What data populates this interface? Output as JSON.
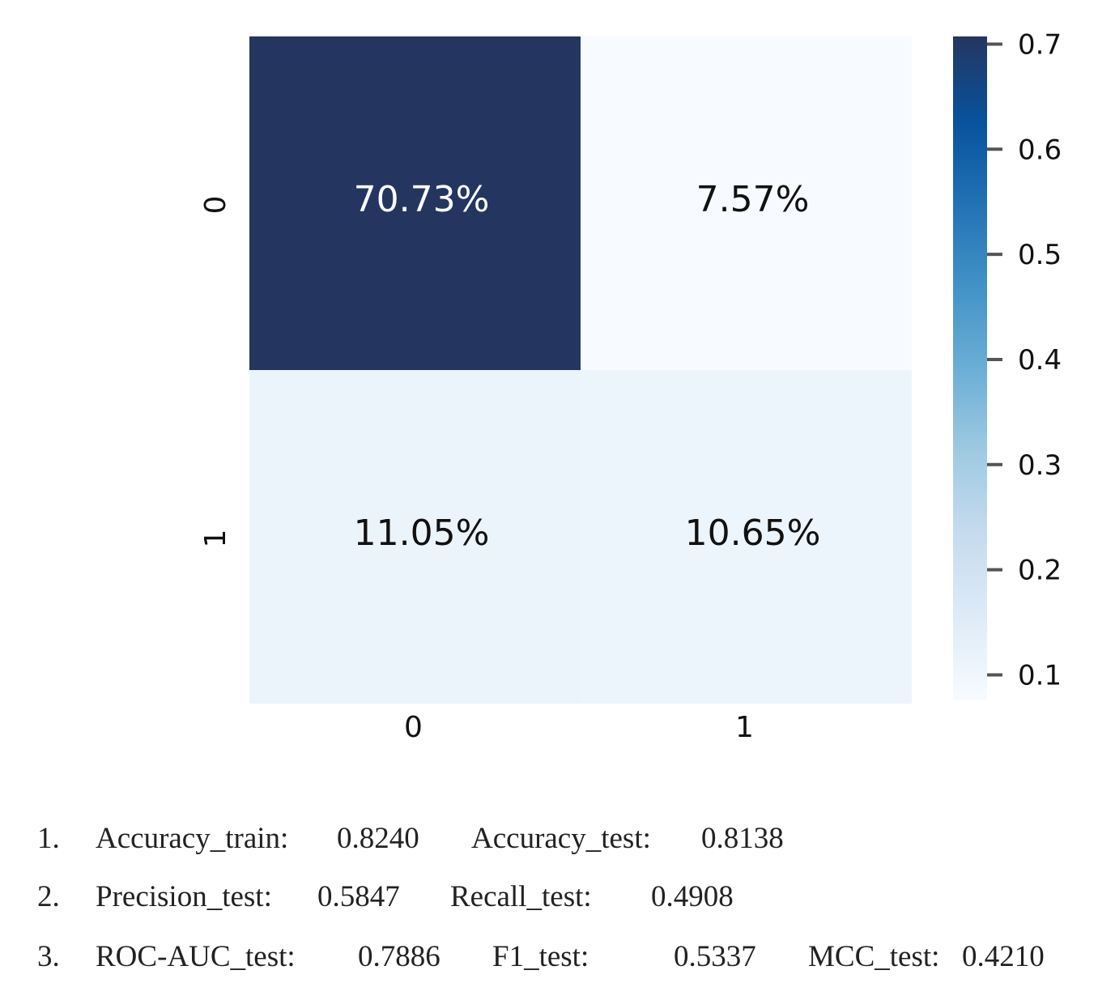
{
  "chart_data": {
    "type": "heatmap",
    "rows": [
      "0",
      "1"
    ],
    "columns": [
      "0",
      "1"
    ],
    "values": [
      [
        0.7073,
        0.0757
      ],
      [
        0.1105,
        0.1065
      ]
    ],
    "cell_labels": [
      [
        "70.73%",
        "7.57%"
      ],
      [
        "11.05%",
        "10.65%"
      ]
    ],
    "colormap": "Blues",
    "colorbar": {
      "range": [
        0.0757,
        0.7073
      ],
      "ticks": [
        0.1,
        0.2,
        0.3,
        0.4,
        0.5,
        0.6,
        0.7
      ],
      "tick_labels": [
        "0.1",
        "0.2",
        "0.3",
        "0.4",
        "0.5",
        "0.6",
        "0.7"
      ]
    },
    "grid": false
  },
  "metrics": [
    {
      "number": "1.",
      "items": [
        {
          "label": "Accuracy_train:",
          "value": "0.8240"
        },
        {
          "label": "Accuracy_test:",
          "value": "0.8138"
        }
      ]
    },
    {
      "number": "2.",
      "items": [
        {
          "label": "Precision_test:",
          "value": "0.5847"
        },
        {
          "label": "Recall_test:",
          "value": "0.4908"
        }
      ]
    },
    {
      "number": "3.",
      "items": [
        {
          "label": "ROC-AUC_test:",
          "value": "0.7886"
        },
        {
          "label": "F1_test:",
          "value": "0.5337"
        },
        {
          "label": "MCC_test:",
          "value": "0.4210"
        }
      ]
    }
  ]
}
